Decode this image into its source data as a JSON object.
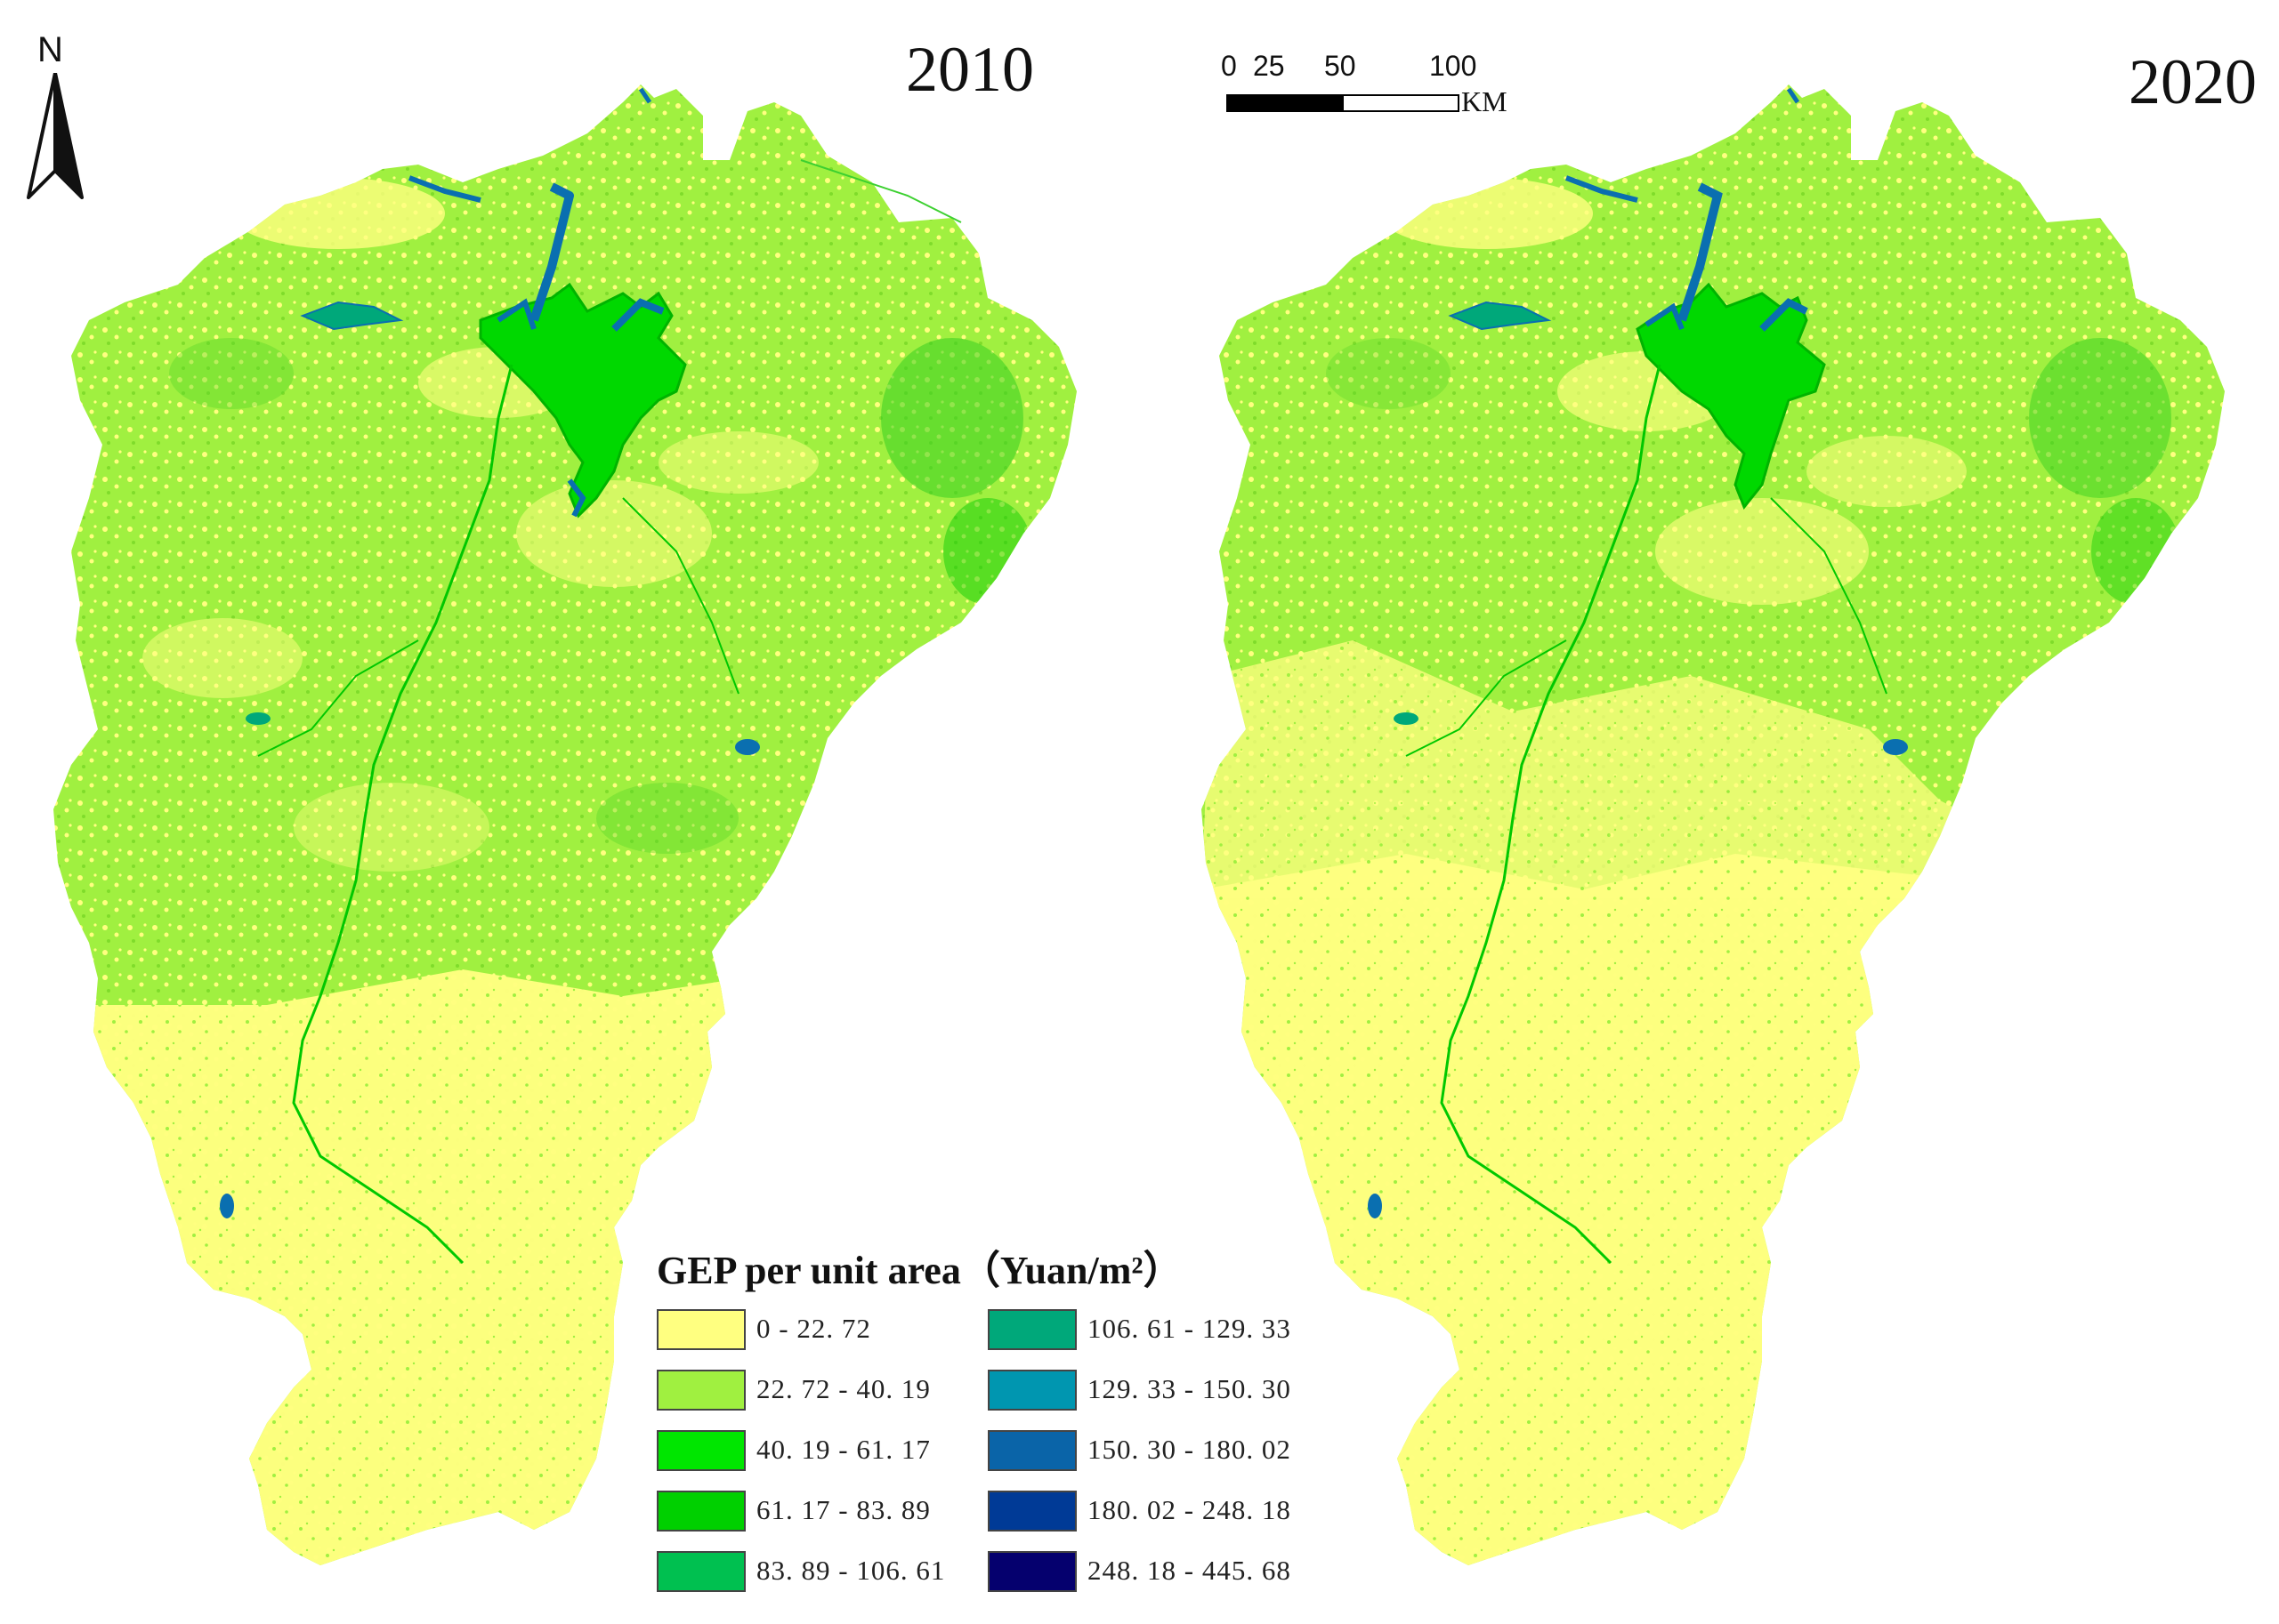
{
  "maps": [
    {
      "year": "2010"
    },
    {
      "year": "2020"
    }
  ],
  "north_arrow": {
    "letter": "N"
  },
  "scale_bar": {
    "ticks": [
      "0",
      "25",
      "50",
      "100"
    ],
    "unit": "KM"
  },
  "legend": {
    "title": "GEP per unit area（Yuan/m²）",
    "items": [
      {
        "label": "0 - 22. 72",
        "color": "#ffff80"
      },
      {
        "label": "22. 72 - 40. 19",
        "color": "#a0f040"
      },
      {
        "label": "40. 19 - 61. 17",
        "color": "#00e600"
      },
      {
        "label": "61. 17 - 83. 89",
        "color": "#00d000"
      },
      {
        "label": "83. 89 - 106. 61",
        "color": "#00c050"
      },
      {
        "label": "106. 61 - 129. 33",
        "color": "#00a87a"
      },
      {
        "label": "129. 33 - 150. 30",
        "color": "#0096b0"
      },
      {
        "label": "150. 30 - 180. 02",
        "color": "#0a64a8"
      },
      {
        "label": "180. 02 - 248. 18",
        "color": "#003a96"
      },
      {
        "label": "248. 18 - 445. 68",
        "color": "#05006e"
      }
    ]
  }
}
